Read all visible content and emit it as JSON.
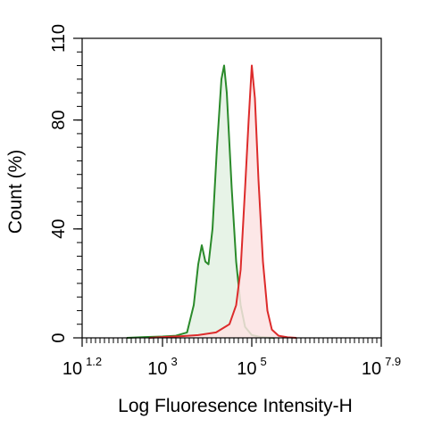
{
  "chart_data": {
    "type": "area",
    "title": "",
    "xlabel": "Log Fluoresence Intensity-H",
    "ylabel": "Count  (%)",
    "x_scale": "log10",
    "xlim": [
      1.2,
      7.9
    ],
    "ylim": [
      0,
      110
    ],
    "x_ticks": [
      {
        "base": "10",
        "exp": "1.2",
        "value": 1.2
      },
      {
        "base": "10",
        "exp": "3",
        "value": 3
      },
      {
        "base": "10",
        "exp": "5",
        "value": 5
      },
      {
        "base": "10",
        "exp": "7.9",
        "value": 7.9
      }
    ],
    "y_ticks": [
      {
        "label": "0",
        "value": 0
      },
      {
        "label": "40",
        "value": 40
      },
      {
        "label": "80",
        "value": 80
      },
      {
        "label": "110",
        "value": 110
      }
    ],
    "grid": false,
    "legend": "none",
    "series": [
      {
        "color": "#2a8a2a",
        "fill": "#e3f1e3",
        "points": [
          [
            2.2,
            0
          ],
          [
            2.6,
            0.3
          ],
          [
            3.0,
            0.5
          ],
          [
            3.3,
            0.8
          ],
          [
            3.55,
            2
          ],
          [
            3.7,
            12
          ],
          [
            3.8,
            27
          ],
          [
            3.88,
            34
          ],
          [
            3.96,
            28
          ],
          [
            4.03,
            27
          ],
          [
            4.12,
            40
          ],
          [
            4.22,
            70
          ],
          [
            4.32,
            95
          ],
          [
            4.38,
            100
          ],
          [
            4.44,
            90
          ],
          [
            4.55,
            55
          ],
          [
            4.65,
            28
          ],
          [
            4.75,
            12
          ],
          [
            4.85,
            4
          ],
          [
            5.0,
            1
          ],
          [
            5.2,
            0.3
          ],
          [
            5.5,
            0
          ]
        ]
      },
      {
        "color": "#dd2b2b",
        "fill": "#fbe3e3",
        "points": [
          [
            2.7,
            0
          ],
          [
            3.0,
            0.3
          ],
          [
            3.4,
            0.6
          ],
          [
            3.8,
            1
          ],
          [
            4.2,
            2
          ],
          [
            4.5,
            5
          ],
          [
            4.65,
            12
          ],
          [
            4.75,
            25
          ],
          [
            4.85,
            55
          ],
          [
            4.93,
            80
          ],
          [
            5.0,
            100
          ],
          [
            5.07,
            88
          ],
          [
            5.15,
            58
          ],
          [
            5.25,
            28
          ],
          [
            5.35,
            10
          ],
          [
            5.45,
            3
          ],
          [
            5.6,
            0.8
          ],
          [
            5.8,
            0.2
          ],
          [
            6.0,
            0
          ]
        ]
      }
    ]
  }
}
